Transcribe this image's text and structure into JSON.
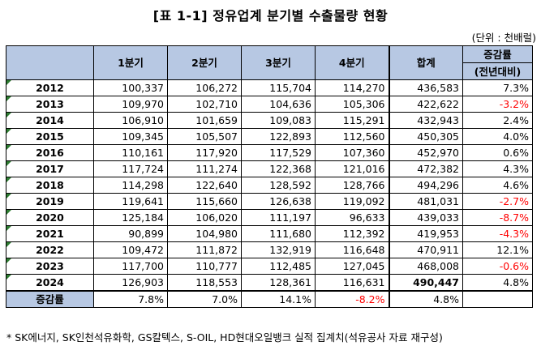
{
  "title": "[표 1-1] 정유업계 분기별 수출물량 현황",
  "unit": "(단위 : 천배럴)",
  "headers": {
    "q1": "1분기",
    "q2": "2분기",
    "q3": "3분기",
    "q4": "4분기",
    "total": "합계",
    "change_line1": "증감률",
    "change_line2": "(전년대비)"
  },
  "rows": [
    {
      "year": "2012",
      "q1": "100,337",
      "q2": "106,272",
      "q3": "115,704",
      "q4": "114,270",
      "total": "436,583",
      "change": "7.3%"
    },
    {
      "year": "2013",
      "q1": "109,970",
      "q2": "102,710",
      "q3": "104,636",
      "q4": "105,306",
      "total": "422,622",
      "change": "-3.2%"
    },
    {
      "year": "2014",
      "q1": "106,910",
      "q2": "101,659",
      "q3": "109,083",
      "q4": "115,291",
      "total": "432,943",
      "change": "2.4%"
    },
    {
      "year": "2015",
      "q1": "109,345",
      "q2": "105,507",
      "q3": "122,893",
      "q4": "112,560",
      "total": "450,305",
      "change": "4.0%"
    },
    {
      "year": "2016",
      "q1": "110,161",
      "q2": "117,920",
      "q3": "117,529",
      "q4": "107,360",
      "total": "452,970",
      "change": "0.6%"
    },
    {
      "year": "2017",
      "q1": "117,724",
      "q2": "111,274",
      "q3": "122,368",
      "q4": "121,016",
      "total": "472,382",
      "change": "4.3%"
    },
    {
      "year": "2018",
      "q1": "114,298",
      "q2": "122,640",
      "q3": "128,592",
      "q4": "128,766",
      "total": "494,296",
      "change": "4.6%"
    },
    {
      "year": "2019",
      "q1": "119,641",
      "q2": "115,660",
      "q3": "126,638",
      "q4": "119,092",
      "total": "481,031",
      "change": "-2.7%"
    },
    {
      "year": "2020",
      "q1": "125,184",
      "q2": "106,020",
      "q3": "111,197",
      "q4": "96,633",
      "total": "439,033",
      "change": "-8.7%"
    },
    {
      "year": "2021",
      "q1": "90,899",
      "q2": "104,980",
      "q3": "111,680",
      "q4": "112,392",
      "total": "419,953",
      "change": "-4.3%"
    },
    {
      "year": "2022",
      "q1": "109,472",
      "q2": "111,872",
      "q3": "132,919",
      "q4": "116,648",
      "total": "470,911",
      "change": "12.1%"
    },
    {
      "year": "2023",
      "q1": "117,700",
      "q2": "110,777",
      "q3": "112,485",
      "q4": "127,045",
      "total": "468,008",
      "change": "-0.6%"
    },
    {
      "year": "2024",
      "q1": "126,903",
      "q2": "118,553",
      "q3": "128,361",
      "q4": "116,631",
      "total": "490,447",
      "change": "4.8%"
    }
  ],
  "footer": {
    "label": "증감률",
    "q1": "7.8%",
    "q2": "7.0%",
    "q3": "14.1%",
    "q4": "-8.2%",
    "total": "4.8%",
    "change": ""
  },
  "footnote": "* SK에너지, SK인천석유화학, GS칼텍스, S-OIL, HD현대오일뱅크 실적 집계치(석유공사 자료 재구성)",
  "colors": {
    "header_bg": "#b7c8e3",
    "negative": "#ff0000",
    "marker": "#2e7d32"
  }
}
